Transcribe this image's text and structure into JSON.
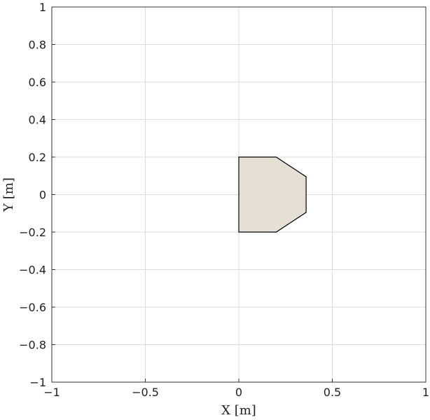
{
  "chart_data": {
    "type": "area",
    "title": "",
    "xlabel": "X [m]",
    "ylabel": "Y [m]",
    "xlim": [
      -1,
      1
    ],
    "ylim": [
      -1,
      1
    ],
    "xticks": [
      -1,
      -0.5,
      0,
      0.5,
      1
    ],
    "xtick_labels": [
      "−1",
      "−0.5",
      "0",
      "0.5",
      "1"
    ],
    "yticks": [
      1,
      0.8,
      0.6,
      0.4,
      0.2,
      0,
      -0.2,
      -0.4,
      -0.6,
      -0.8,
      -1
    ],
    "ytick_labels": [
      "1",
      "0.8",
      "0.6",
      "0.4",
      "0.2",
      "0",
      "−0.2",
      "−0.4",
      "−0.6",
      "−0.8",
      "−1"
    ],
    "grid": true,
    "legend": "none",
    "series": [
      {
        "shape": "polygon",
        "points": [
          [
            0,
            0.2
          ],
          [
            0.2,
            0.2
          ],
          [
            0.36,
            0.095
          ],
          [
            0.36,
            -0.095
          ],
          [
            0.2,
            -0.2
          ],
          [
            0,
            -0.2
          ]
        ],
        "fill": "#e6e0d4",
        "stroke": "#000000"
      }
    ]
  }
}
